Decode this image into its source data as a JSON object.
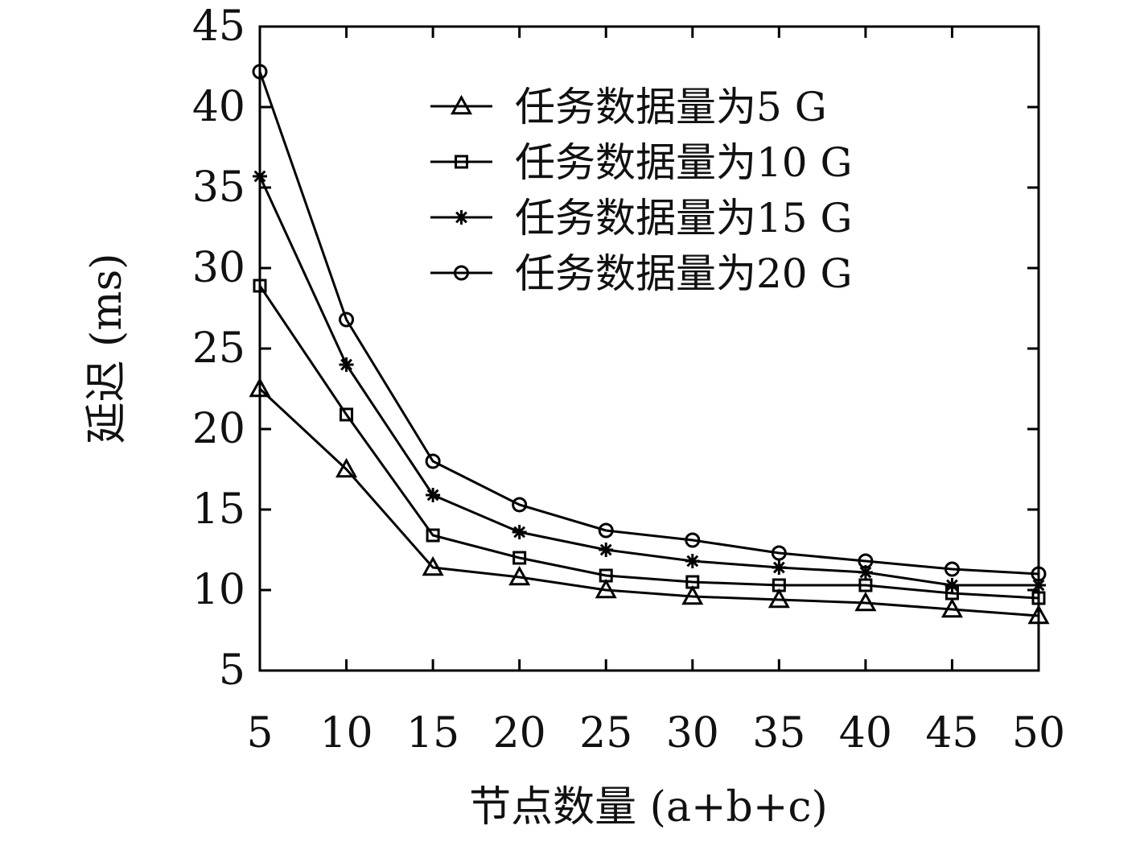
{
  "chart_data": {
    "type": "line",
    "title": "",
    "xlabel": "节点数量 (a+b+c)",
    "ylabel": "延迟 (ms)",
    "x": [
      5,
      10,
      15,
      20,
      25,
      30,
      35,
      40,
      45,
      50
    ],
    "xticks": [
      "5",
      "10",
      "15",
      "20",
      "25",
      "30",
      "35",
      "40",
      "45",
      "50"
    ],
    "yticks": [
      "5",
      "10",
      "15",
      "20",
      "25",
      "30",
      "35",
      "40",
      "45"
    ],
    "xlim": [
      5,
      50
    ],
    "ylim": [
      5,
      45
    ],
    "grid": false,
    "legend_position": "top-right",
    "series": [
      {
        "name": "任务数据量为5 G",
        "marker": "triangle",
        "values": [
          22.5,
          17.5,
          11.4,
          10.8,
          10.0,
          9.6,
          9.4,
          9.2,
          8.8,
          8.4
        ]
      },
      {
        "name": "任务数据量为10 G",
        "marker": "square",
        "values": [
          28.9,
          20.9,
          13.4,
          12.0,
          10.9,
          10.5,
          10.3,
          10.3,
          9.8,
          9.5
        ]
      },
      {
        "name": "任务数据量为15 G",
        "marker": "asterisk",
        "values": [
          35.7,
          24.0,
          15.9,
          13.6,
          12.5,
          11.8,
          11.4,
          11.1,
          10.3,
          10.3
        ]
      },
      {
        "name": "任务数据量为20 G",
        "marker": "circle",
        "values": [
          42.2,
          26.8,
          18.0,
          15.3,
          13.7,
          13.1,
          12.3,
          11.8,
          11.3,
          11.0
        ]
      }
    ],
    "colors": {
      "line": "#000000",
      "text": "#111111",
      "background": "#ffffff"
    }
  }
}
